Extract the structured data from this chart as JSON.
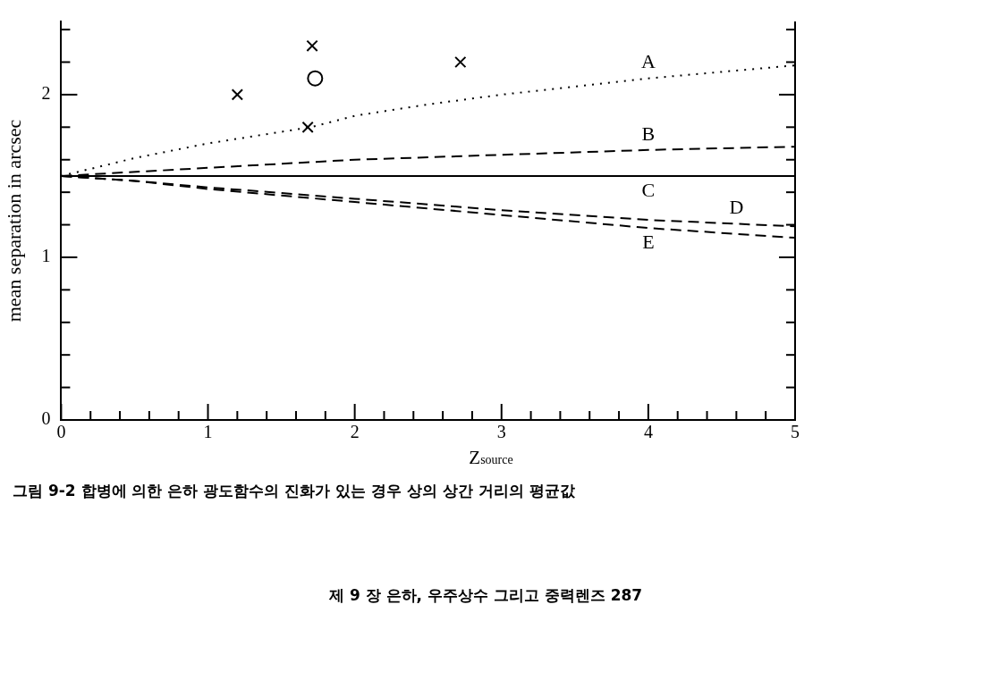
{
  "chart_data": {
    "type": "line",
    "xlabel": "Z$_{source}$",
    "ylabel": "mean separation in arcsec",
    "xlim": [
      0,
      5
    ],
    "ylim": [
      0,
      2.45
    ],
    "xticks": [
      0,
      {
        "value": 0.2,
        "label": null
      },
      {
        "value": 0.4,
        "label": null
      },
      {
        "value": 0.6,
        "label": null
      },
      {
        "value": 0.8,
        "label": null
      },
      1,
      {
        "value": 1.2,
        "label": null
      },
      {
        "value": 1.4,
        "label": null
      },
      {
        "value": 1.6,
        "label": null
      },
      {
        "value": 1.8,
        "label": null
      },
      2,
      {
        "value": 2.2,
        "label": null
      },
      {
        "value": 2.4,
        "label": null
      },
      {
        "value": 2.6,
        "label": null
      },
      {
        "value": 2.8,
        "label": null
      },
      3,
      {
        "value": 3.2,
        "label": null
      },
      {
        "value": 3.4,
        "label": null
      },
      {
        "value": 3.6,
        "label": null
      },
      {
        "value": 3.8,
        "label": null
      },
      4,
      {
        "value": 4.2,
        "label": null
      },
      {
        "value": 4.4,
        "label": null
      },
      {
        "value": 4.6,
        "label": null
      },
      {
        "value": 4.8,
        "label": null
      },
      5
    ],
    "yticks": [
      0,
      {
        "value": 0.2,
        "label": null
      },
      {
        "value": 0.4,
        "label": null
      },
      {
        "value": 0.6,
        "label": null
      },
      {
        "value": 0.8,
        "label": null
      },
      1,
      {
        "value": 1.2,
        "label": null
      },
      {
        "value": 1.4,
        "label": null
      },
      {
        "value": 1.6,
        "label": null
      },
      {
        "value": 1.8,
        "label": null
      },
      2,
      {
        "value": 2.2,
        "label": null
      },
      {
        "value": 2.4,
        "label": null
      }
    ],
    "grid": false,
    "legend": false,
    "series": [
      {
        "name": "A",
        "color": "#000000",
        "line_style": "dotted",
        "marker": "none",
        "x": [
          0,
          0.5,
          1,
          1.7,
          2,
          2.5,
          3,
          4,
          5
        ],
        "values": [
          1.5,
          1.61,
          1.7,
          1.8,
          1.87,
          1.94,
          2.0,
          2.1,
          2.18
        ]
      },
      {
        "name": "B",
        "color": "#000000",
        "line_style": "dashed",
        "marker": "none",
        "x": [
          0,
          1,
          2,
          3,
          4,
          5
        ],
        "values": [
          1.5,
          1.55,
          1.6,
          1.63,
          1.66,
          1.68
        ]
      },
      {
        "name": "C",
        "color": "#000000",
        "line_style": "solid",
        "marker": "none",
        "x": [
          0,
          5
        ],
        "values": [
          1.5,
          1.5
        ]
      },
      {
        "name": "D",
        "color": "#000000",
        "line_style": "dashed",
        "marker": "none",
        "x": [
          0,
          0.5,
          1,
          2,
          3,
          4,
          5
        ],
        "values": [
          1.5,
          1.47,
          1.43,
          1.36,
          1.29,
          1.23,
          1.19
        ]
      },
      {
        "name": "E",
        "color": "#000000",
        "line_style": "dashed",
        "marker": "none",
        "x": [
          0,
          0.5,
          1,
          2,
          3,
          4,
          5
        ],
        "values": [
          1.5,
          1.47,
          1.42,
          1.34,
          1.26,
          1.18,
          1.12
        ]
      },
      {
        "type": "scatter",
        "color": "#000000",
        "marker": "cross",
        "x": [
          1.2,
          1.68,
          1.71,
          2.72
        ],
        "values": [
          2.0,
          1.8,
          2.3,
          2.2
        ]
      },
      {
        "type": "scatter",
        "color": "#000000",
        "marker": "circle",
        "x": [
          1.73
        ],
        "values": [
          2.1
        ]
      }
    ],
    "annotations": [
      "그림 9-2  합병에 의한 은하 광도함수의 진화가 있는 경우 상의 상간 거리의 평균값",
      "제 9 장  은하, 우주상수 그리고 중력렌즈  287"
    ]
  }
}
